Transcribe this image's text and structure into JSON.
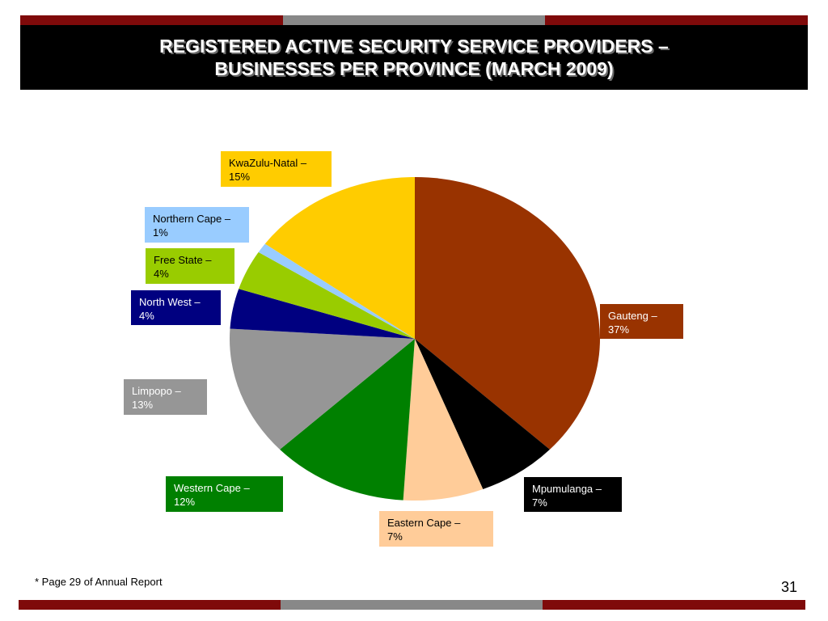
{
  "header": {
    "title_line1": "REGISTERED ACTIVE SECURITY SERVICE PROVIDERS –",
    "title_line2": "BUSINESSES PER PROVINCE (MARCH 2009)"
  },
  "colors": {
    "bar_red": "#7f0a0a",
    "bar_gray": "#888888"
  },
  "chart_data": {
    "type": "pie",
    "title": "REGISTERED ACTIVE SECURITY SERVICE PROVIDERS – BUSINESSES PER PROVINCE (MARCH 2009)",
    "unit": "%",
    "slices": [
      {
        "name": "Gauteng",
        "label": "Gauteng –",
        "pct": "37%",
        "value": 37,
        "color": "#993300",
        "text_color": "#ffffff"
      },
      {
        "name": "Mpumulanga",
        "label": "Mpumulanga –",
        "pct": "7%",
        "value": 7,
        "color": "#000000",
        "text_color": "#ffffff"
      },
      {
        "name": "Eastern Cape",
        "label": "Eastern Cape –",
        "pct": "7%",
        "value": 7,
        "color": "#ffcc99",
        "text_color": "#000000"
      },
      {
        "name": "Western Cape",
        "label": "Western Cape –",
        "pct": "12%",
        "value": 12,
        "color": "#008000",
        "text_color": "#ffffff"
      },
      {
        "name": "Limpopo",
        "label": "Limpopo –",
        "pct": "13%",
        "value": 13,
        "color": "#969696",
        "text_color": "#ffffff"
      },
      {
        "name": "North West",
        "label": "North West –",
        "pct": "4%",
        "value": 4,
        "color": "#000080",
        "text_color": "#ffffff"
      },
      {
        "name": "Free State",
        "label": "Free State –",
        "pct": "4%",
        "value": 4,
        "color": "#99cc00",
        "text_color": "#000000"
      },
      {
        "name": "Northern Cape",
        "label": "Northern Cape –",
        "pct": "1%",
        "value": 1,
        "color": "#99ccff",
        "text_color": "#000000"
      },
      {
        "name": "KwaZulu-Natal",
        "label": "KwaZulu-Natal –",
        "pct": "15%",
        "value": 15,
        "color": "#ffcc00",
        "text_color": "#000000"
      }
    ]
  },
  "footer": {
    "note": "*  Page 29 of Annual Report",
    "page_number": "31"
  }
}
